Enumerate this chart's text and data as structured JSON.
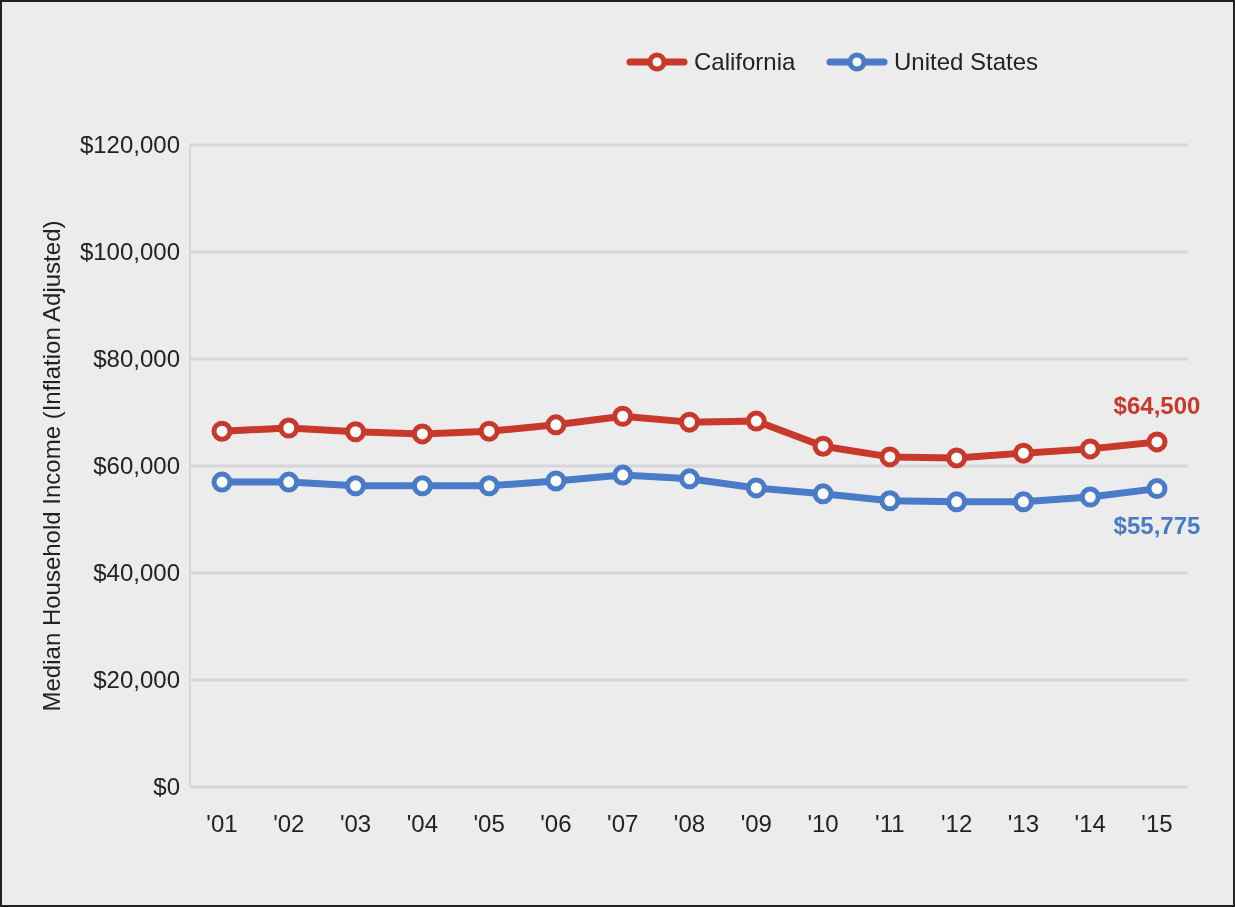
{
  "chart_data": {
    "type": "line",
    "ylabel": "Median Household Income (Inflation Adjusted)",
    "categories": [
      "'01",
      "'02",
      "'03",
      "'04",
      "'05",
      "'06",
      "'07",
      "'08",
      "'09",
      "'10",
      "'11",
      "'12",
      "'13",
      "'14",
      "'15"
    ],
    "series": [
      {
        "name": "California",
        "color": "#c9392b",
        "values": [
          66500,
          67100,
          66400,
          66000,
          66500,
          67700,
          69300,
          68200,
          68400,
          63700,
          61700,
          61500,
          62400,
          63200,
          64500
        ]
      },
      {
        "name": "United States",
        "color": "#4a7bc6",
        "values": [
          57000,
          57000,
          56300,
          56300,
          56300,
          57200,
          58300,
          57600,
          55900,
          54800,
          53500,
          53300,
          53300,
          54200,
          55775
        ]
      }
    ],
    "ylim": [
      0,
      120000
    ],
    "yticks": [
      {
        "value": 0,
        "label": "$0"
      },
      {
        "value": 20000,
        "label": "$20,000"
      },
      {
        "value": 40000,
        "label": "$40,000"
      },
      {
        "value": 60000,
        "label": "$60,000"
      },
      {
        "value": 80000,
        "label": "$80,000"
      },
      {
        "value": 100000,
        "label": "$100,000"
      },
      {
        "value": 120000,
        "label": "$120,000"
      }
    ],
    "grid": "y",
    "legend": "top",
    "marker": "circle",
    "line_style": "solid",
    "annotations": [
      {
        "text": "$64,500",
        "x": "'15",
        "y": 64500
      },
      {
        "text": "$55,775",
        "x": "'15",
        "y": 55775
      }
    ]
  }
}
